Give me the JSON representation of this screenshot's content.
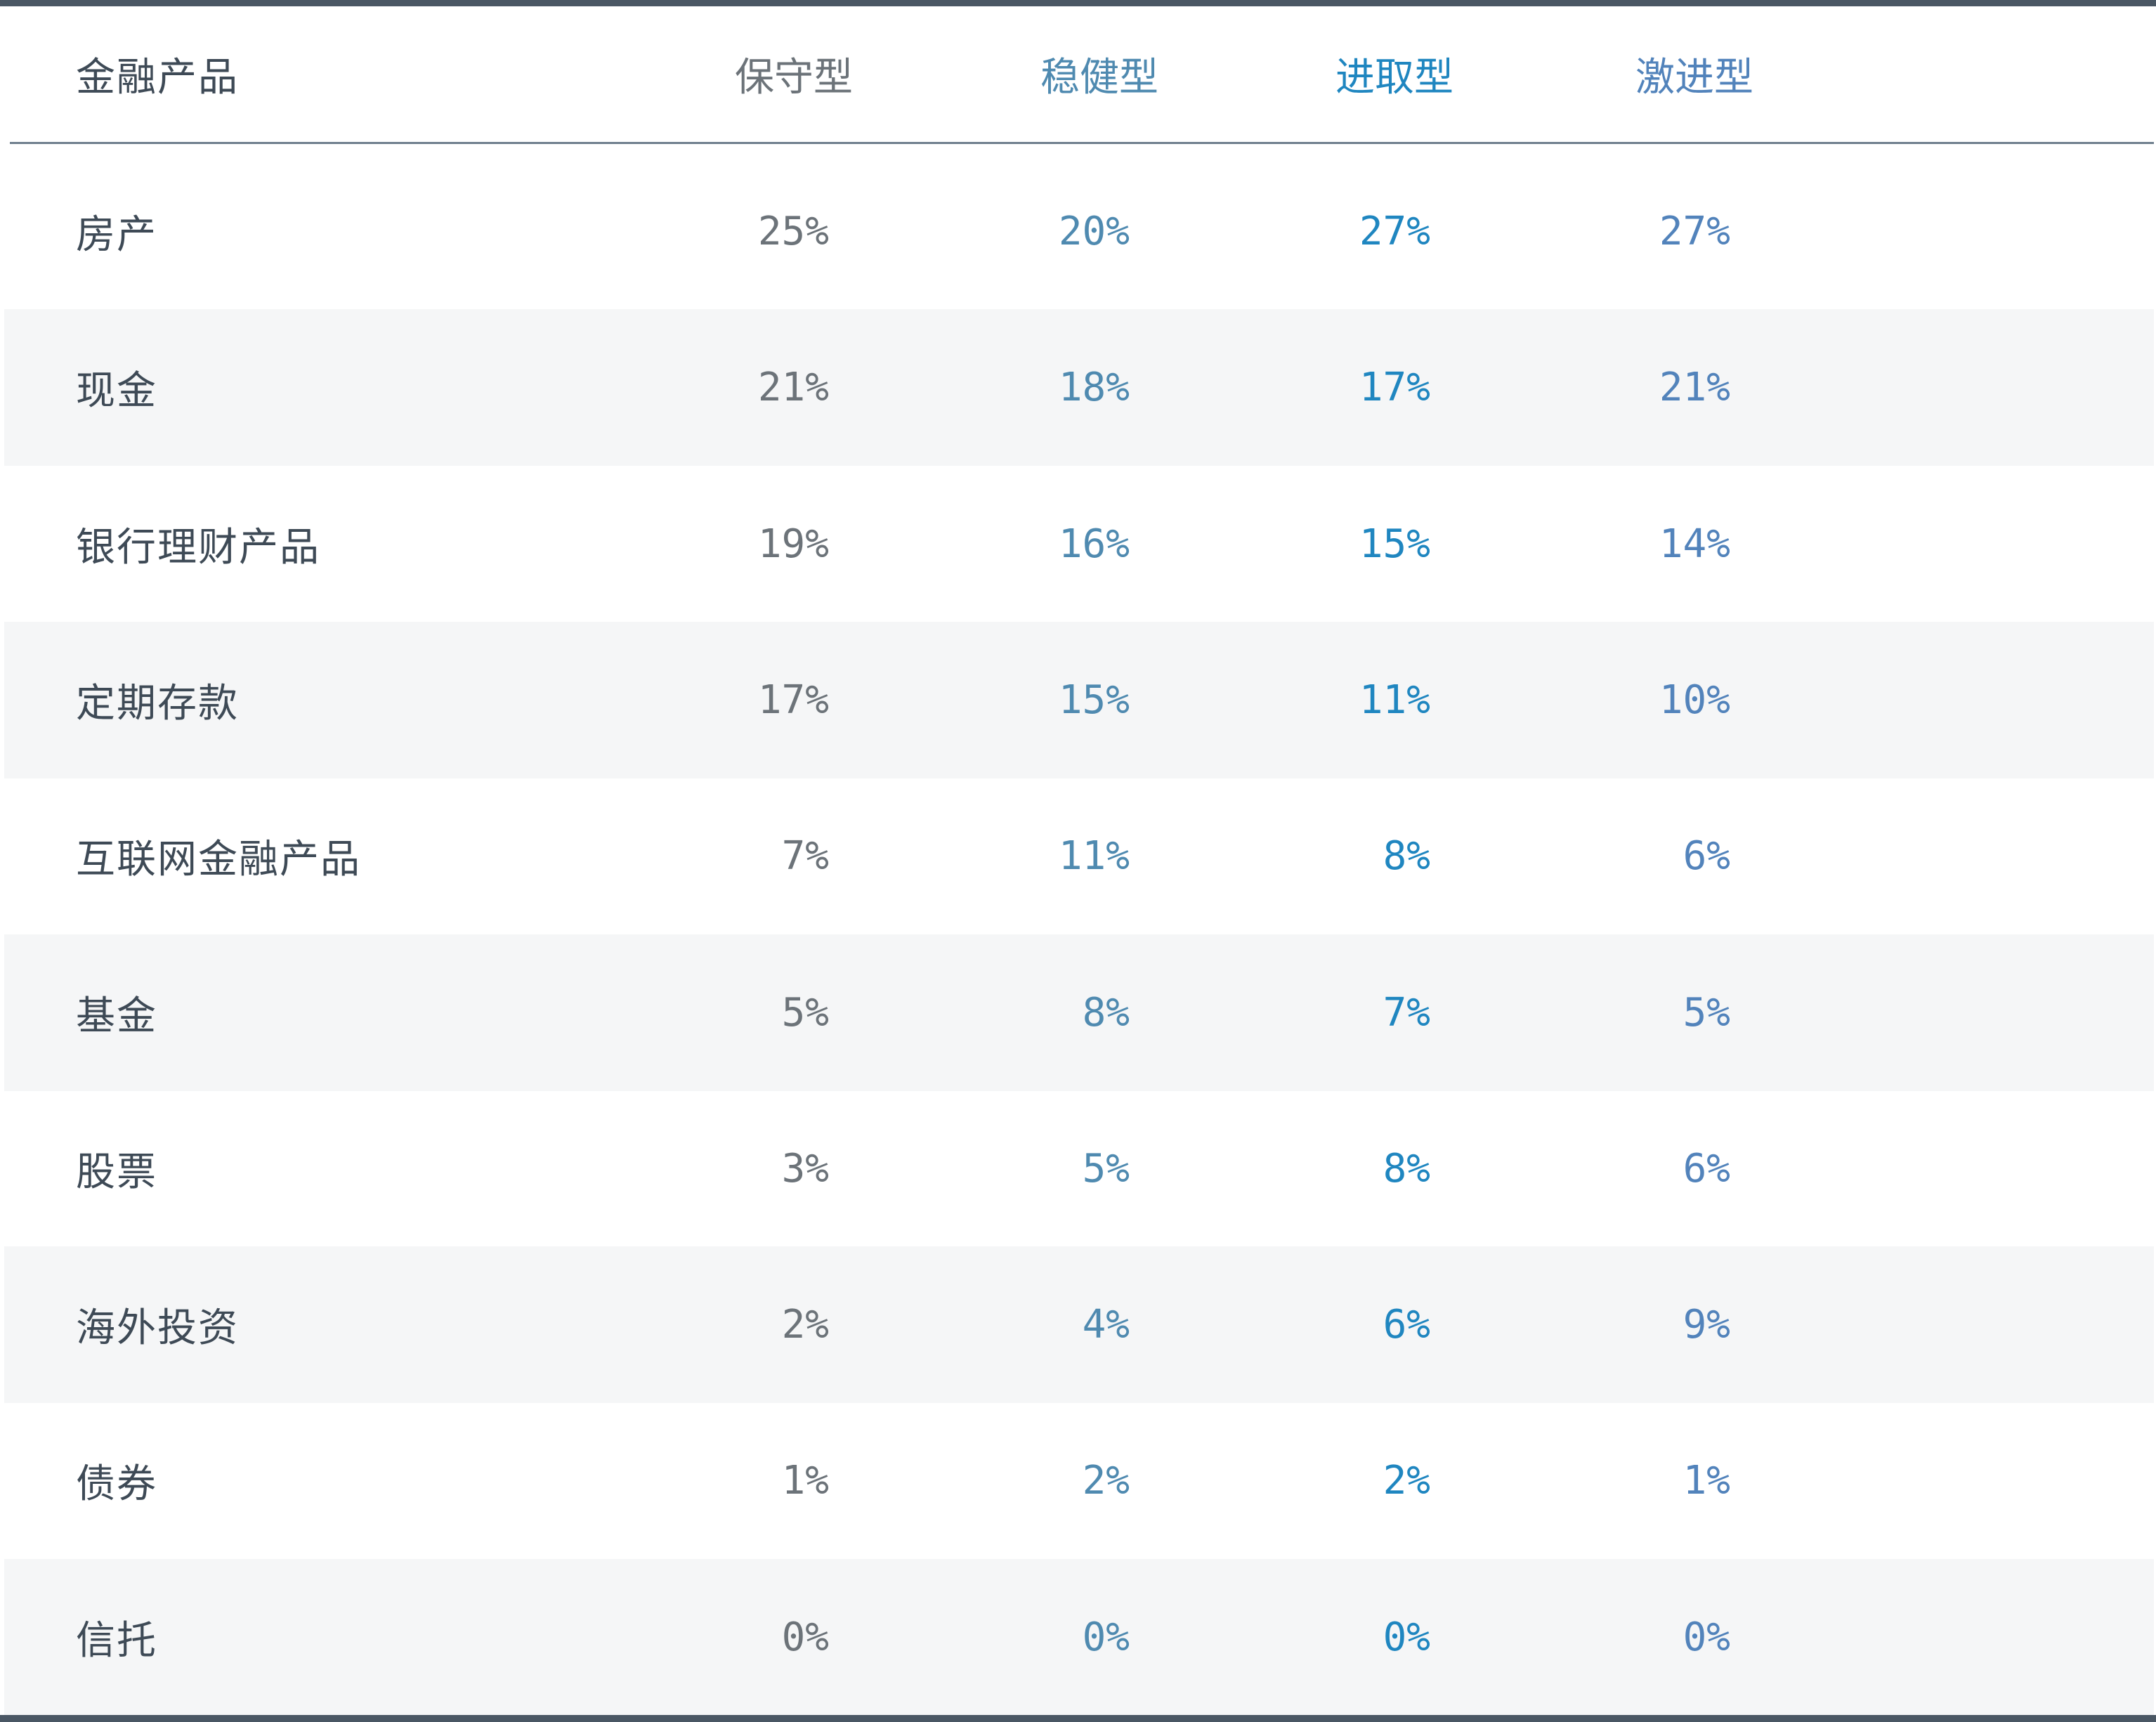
{
  "chart_data": {
    "type": "table",
    "columns": [
      "金融产品",
      "保守型",
      "稳健型",
      "进取型",
      "激进型"
    ],
    "rows": [
      {
        "label": "房产",
        "values": [
          "25%",
          "20%",
          "27%",
          "27%"
        ]
      },
      {
        "label": "现金",
        "values": [
          "21%",
          "18%",
          "17%",
          "21%"
        ]
      },
      {
        "label": "银行理财产品",
        "values": [
          "19%",
          "16%",
          "15%",
          "14%"
        ]
      },
      {
        "label": "定期存款",
        "values": [
          "17%",
          "15%",
          "11%",
          "10%"
        ]
      },
      {
        "label": "互联网金融产品",
        "values": [
          "7%",
          "11%",
          "8%",
          "6%"
        ]
      },
      {
        "label": "基金",
        "values": [
          "5%",
          "8%",
          "7%",
          "5%"
        ]
      },
      {
        "label": "股票",
        "values": [
          "3%",
          "5%",
          "8%",
          "6%"
        ]
      },
      {
        "label": "海外投资",
        "values": [
          "2%",
          "4%",
          "6%",
          "9%"
        ]
      },
      {
        "label": "债券",
        "values": [
          "1%",
          "2%",
          "2%",
          "1%"
        ]
      },
      {
        "label": "信托",
        "values": [
          "0%",
          "0%",
          "0%",
          "0%"
        ]
      }
    ],
    "column_colors": [
      "#6c7379",
      "#4f8ab0",
      "#1f86c0",
      "#5283bb"
    ],
    "label_color": "#3e4a56",
    "alternate_row_color": "#f5f6f7",
    "border_color": "#4a5764"
  }
}
